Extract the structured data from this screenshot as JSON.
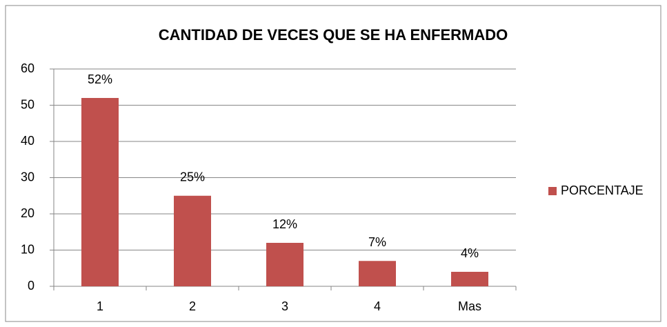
{
  "chart_data": {
    "type": "bar",
    "title": "CANTIDAD DE VECES QUE SE HA ENFERMADO",
    "categories": [
      "1",
      "2",
      "3",
      "4",
      "Mas"
    ],
    "series": [
      {
        "name": "PORCENTAJE",
        "color": "#c0504d",
        "values": [
          52,
          25,
          12,
          7,
          4
        ],
        "value_labels": [
          "52%",
          "25%",
          "12%",
          "7%",
          "4%"
        ]
      }
    ],
    "ylim": [
      0,
      60
    ],
    "yticks": [
      0,
      10,
      20,
      30,
      40,
      50,
      60
    ],
    "grid": true,
    "legend": "right"
  }
}
